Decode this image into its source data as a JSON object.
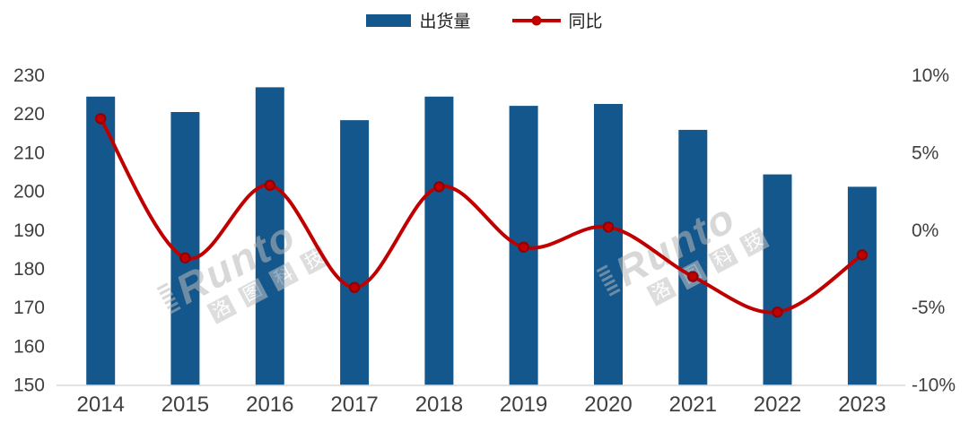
{
  "legend": {
    "items": [
      {
        "label": "出货量",
        "type": "bar",
        "color": "#14578C"
      },
      {
        "label": "同比",
        "type": "line",
        "color": "#C00000"
      }
    ]
  },
  "watermark": {
    "brand": "Runto",
    "brand_cn": [
      "洛",
      "图",
      "科",
      "技"
    ]
  },
  "chart_data": {
    "type": "bar+line combo",
    "title": "",
    "categories": [
      "2014",
      "2015",
      "2016",
      "2017",
      "2018",
      "2019",
      "2020",
      "2021",
      "2022",
      "2023"
    ],
    "series": [
      {
        "name": "出货量",
        "type": "bar",
        "axis": "left",
        "color": "#14578C",
        "values": [
          224.5,
          220.5,
          226.9,
          218.4,
          224.5,
          222.1,
          222.6,
          215.9,
          204.4,
          201.2
        ]
      },
      {
        "name": "同比",
        "type": "line",
        "axis": "right",
        "unit": "%",
        "color": "#C00000",
        "marker_edge_color": "#8F0000",
        "values": [
          7.2,
          -1.8,
          2.9,
          -3.7,
          2.8,
          -1.1,
          0.2,
          -3.0,
          -5.3,
          -1.6
        ]
      }
    ],
    "left_axis": {
      "min": 150,
      "max": 230,
      "step": 10,
      "tick_values": [
        230,
        220,
        210,
        200,
        190,
        180,
        170,
        160,
        150
      ],
      "tick_labels": [
        "230",
        "220",
        "210",
        "200",
        "190",
        "180",
        "170",
        "160",
        "150"
      ]
    },
    "right_axis": {
      "min": -10,
      "max": 10,
      "step": 5,
      "tick_values": [
        10,
        5,
        0,
        -5,
        -10
      ],
      "tick_labels": [
        "10%",
        "5%",
        "0%",
        "-5%",
        "-10%"
      ]
    },
    "grid": false,
    "legend_position": "top-center",
    "background": "#FFFFFF",
    "axis_line_color": "#D9D9D9",
    "tick_text_color": "#3F3F3F"
  }
}
